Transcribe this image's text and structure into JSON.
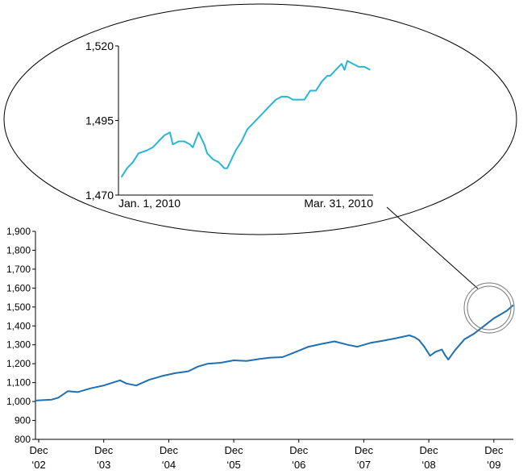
{
  "chart_data": [
    {
      "id": "main",
      "type": "line",
      "title": "",
      "xlabel": "",
      "ylabel": "",
      "ylim": [
        800,
        1900
      ],
      "yticks": [
        800,
        900,
        1000,
        1100,
        1200,
        1300,
        1400,
        1500,
        1600,
        1700,
        1800,
        1900
      ],
      "ytick_labels": [
        "800",
        "900",
        "1,000",
        "1,100",
        "1,200",
        "1,300",
        "1,400",
        "1,500",
        "1,600",
        "1,700",
        "1,800",
        "1,900"
      ],
      "xlim": [
        2002.95,
        2010.3
      ],
      "xticks": [
        {
          "x": 2003.0,
          "line1": "Dec",
          "line2": "‘02"
        },
        {
          "x": 2004.0,
          "line1": "Dec",
          "line2": "‘03"
        },
        {
          "x": 2005.0,
          "line1": "Dec",
          "line2": "‘04"
        },
        {
          "x": 2006.0,
          "line1": "Dec",
          "line2": "‘05"
        },
        {
          "x": 2007.0,
          "line1": "Dec",
          "line2": "‘06"
        },
        {
          "x": 2008.0,
          "line1": "Dec",
          "line2": "‘07"
        },
        {
          "x": 2009.0,
          "line1": "Dec",
          "line2": "‘08"
        },
        {
          "x": 2010.0,
          "line1": "Dec",
          "line2": "‘09"
        }
      ],
      "grid": false,
      "series": [
        {
          "color": "#1f6fb2",
          "points": [
            [
              2002.95,
              1005
            ],
            [
              2003.2,
              1010
            ],
            [
              2003.3,
              1020
            ],
            [
              2003.45,
              1055
            ],
            [
              2003.6,
              1050
            ],
            [
              2003.8,
              1070
            ],
            [
              2004.0,
              1085
            ],
            [
              2004.25,
              1112
            ],
            [
              2004.35,
              1095
            ],
            [
              2004.5,
              1085
            ],
            [
              2004.7,
              1115
            ],
            [
              2004.9,
              1135
            ],
            [
              2005.1,
              1150
            ],
            [
              2005.3,
              1160
            ],
            [
              2005.45,
              1185
            ],
            [
              2005.6,
              1200
            ],
            [
              2005.8,
              1205
            ],
            [
              2006.0,
              1218
            ],
            [
              2006.2,
              1215
            ],
            [
              2006.4,
              1225
            ],
            [
              2006.55,
              1232
            ],
            [
              2006.75,
              1235
            ],
            [
              2006.9,
              1255
            ],
            [
              2007.15,
              1290
            ],
            [
              2007.35,
              1305
            ],
            [
              2007.55,
              1318
            ],
            [
              2007.75,
              1300
            ],
            [
              2007.9,
              1290
            ],
            [
              2008.1,
              1310
            ],
            [
              2008.3,
              1322
            ],
            [
              2008.5,
              1335
            ],
            [
              2008.7,
              1350
            ],
            [
              2008.78,
              1340
            ],
            [
              2008.85,
              1325
            ],
            [
              2008.93,
              1290
            ],
            [
              2009.02,
              1242
            ],
            [
              2009.1,
              1262
            ],
            [
              2009.2,
              1275
            ],
            [
              2009.25,
              1245
            ],
            [
              2009.3,
              1222
            ],
            [
              2009.4,
              1270
            ],
            [
              2009.55,
              1330
            ],
            [
              2009.7,
              1360
            ],
            [
              2009.85,
              1400
            ],
            [
              2010.0,
              1440
            ],
            [
              2010.1,
              1460
            ],
            [
              2010.2,
              1480
            ],
            [
              2010.3,
              1510
            ]
          ]
        }
      ]
    },
    {
      "id": "inset",
      "type": "line",
      "title": "",
      "xlabel": "",
      "ylabel": "",
      "ylim": [
        1470,
        1520
      ],
      "yticks": [
        1470,
        1495,
        1520
      ],
      "ytick_labels": [
        "1,470",
        "1,495",
        "1,520"
      ],
      "xlim": [
        0,
        89
      ],
      "xtick_labels": [
        {
          "x": 0,
          "text": "Jan. 1, 2010"
        },
        {
          "x": 89,
          "text": "Mar. 31, 2010"
        }
      ],
      "grid": false,
      "series": [
        {
          "color": "#29b6d6",
          "x": [
            1,
            3,
            5,
            7,
            10,
            12,
            14,
            16,
            18,
            19,
            21,
            23,
            25,
            26,
            28,
            30,
            31,
            33,
            35,
            37,
            38,
            39,
            41,
            43,
            45,
            47,
            49,
            52,
            54,
            55,
            57,
            59,
            61,
            63,
            65,
            67,
            69,
            71,
            73,
            74,
            76,
            78,
            79,
            80,
            82,
            84,
            86,
            88
          ],
          "y": [
            1476,
            1479,
            1481,
            1484,
            1485,
            1486,
            1488,
            1490,
            1491,
            1487,
            1488,
            1488,
            1487,
            1486,
            1491,
            1487,
            1484,
            1482,
            1481,
            1479,
            1479,
            1481,
            1485,
            1488,
            1492,
            1494,
            1496,
            1499,
            1501,
            1502,
            1503,
            1503,
            1502,
            1502,
            1502,
            1505,
            1505,
            1508,
            1510,
            1510,
            1512,
            1514,
            1512,
            1515,
            1514,
            1513,
            1513,
            1512
          ]
        }
      ]
    }
  ]
}
